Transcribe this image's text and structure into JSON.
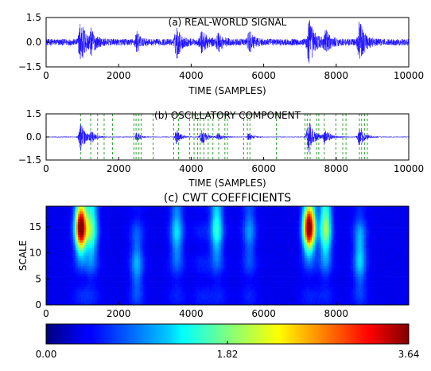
{
  "chart_data": [
    {
      "type": "line",
      "title": "(a) REAL-WORLD SIGNAL",
      "xlabel": "TIME (SAMPLES)",
      "ylabel": "",
      "xlim": [
        0,
        10000
      ],
      "ylim": [
        -1.5,
        1.5
      ],
      "xticks": [
        "0",
        "2000",
        "4000",
        "6000",
        "8000",
        "10000"
      ],
      "yticks": [
        "1.5",
        "0.0",
        "−1.5"
      ],
      "series_color": "#1a0dff",
      "baseline_amplitude": 0.2,
      "bursts": [
        {
          "center": 960,
          "width": 120,
          "amplitude": 1.35
        },
        {
          "center": 1250,
          "width": 100,
          "amplitude": 0.55
        },
        {
          "center": 2500,
          "width": 80,
          "amplitude": 0.6
        },
        {
          "center": 3600,
          "width": 100,
          "amplitude": 0.95
        },
        {
          "center": 4300,
          "width": 120,
          "amplitude": 0.6
        },
        {
          "center": 4750,
          "width": 100,
          "amplitude": 0.55
        },
        {
          "center": 5600,
          "width": 100,
          "amplitude": 0.6
        },
        {
          "center": 7250,
          "width": 130,
          "amplitude": 1.4
        },
        {
          "center": 7700,
          "width": 120,
          "amplitude": 0.6
        },
        {
          "center": 8650,
          "width": 120,
          "amplitude": 1.2
        }
      ]
    },
    {
      "type": "line",
      "title": "(b) OSCILLATORY COMPONENT",
      "xlabel": "TIME (SAMPLES)",
      "ylabel": "",
      "xlim": [
        0,
        10000
      ],
      "ylim": [
        -1.5,
        1.5
      ],
      "xticks": [
        "0",
        "2000",
        "4000",
        "6000",
        "8000",
        "10000"
      ],
      "yticks": [
        "1.5",
        "0.0",
        "−1.5"
      ],
      "series_color": "#1a0dff",
      "marker_color": "#2ca02c",
      "baseline_amplitude": 0.03,
      "bursts": [
        {
          "center": 960,
          "width": 110,
          "amplitude": 1.0
        },
        {
          "center": 1250,
          "width": 90,
          "amplitude": 0.35
        },
        {
          "center": 2500,
          "width": 70,
          "amplitude": 0.35
        },
        {
          "center": 3600,
          "width": 90,
          "amplitude": 0.55
        },
        {
          "center": 4300,
          "width": 110,
          "amplitude": 0.5
        },
        {
          "center": 4750,
          "width": 90,
          "amplitude": 0.25
        },
        {
          "center": 5600,
          "width": 90,
          "amplitude": 0.25
        },
        {
          "center": 7250,
          "width": 130,
          "amplitude": 1.0
        },
        {
          "center": 7700,
          "width": 110,
          "amplitude": 0.5
        },
        {
          "center": 8650,
          "width": 110,
          "amplitude": 0.65
        }
      ],
      "event_markers": [
        950,
        1230,
        1420,
        1600,
        1830,
        2420,
        2480,
        2560,
        2620,
        2950,
        3520,
        3650,
        3960,
        4080,
        4180,
        4250,
        4350,
        4470,
        4600,
        4760,
        4930,
        5000,
        5450,
        5550,
        5620,
        6350,
        7140,
        7200,
        7280,
        7460,
        7520,
        7670,
        7990,
        8180,
        8270,
        8640,
        8700,
        8780,
        8860
      ]
    },
    {
      "type": "heatmap",
      "title": "(c) CWT COEFFICIENTS",
      "xlabel": "",
      "ylabel": "SCALE",
      "xlim": [
        0,
        10000
      ],
      "ylim": [
        0,
        19
      ],
      "xticks": [
        "0",
        "2000",
        "4000",
        "6000",
        "8000"
      ],
      "yticks": [
        "0",
        "5",
        "10",
        "15"
      ],
      "colormap": "jet",
      "colorbar": {
        "min": 0.0,
        "max": 3.64,
        "ticks": [
          "0.00",
          "1.82",
          "3.64"
        ]
      },
      "blobs": [
        {
          "time": 960,
          "scale": 15,
          "value": 3.64
        },
        {
          "time": 1250,
          "scale": 15,
          "value": 1.3
        },
        {
          "time": 2500,
          "scale": 8,
          "value": 0.6
        },
        {
          "time": 3600,
          "scale": 14,
          "value": 0.8
        },
        {
          "time": 4700,
          "scale": 15,
          "value": 1.1
        },
        {
          "time": 5600,
          "scale": 14,
          "value": 0.5
        },
        {
          "time": 7250,
          "scale": 15,
          "value": 3.64
        },
        {
          "time": 7700,
          "scale": 15,
          "value": 1.6
        },
        {
          "time": 8650,
          "scale": 10,
          "value": 0.8
        }
      ]
    }
  ]
}
